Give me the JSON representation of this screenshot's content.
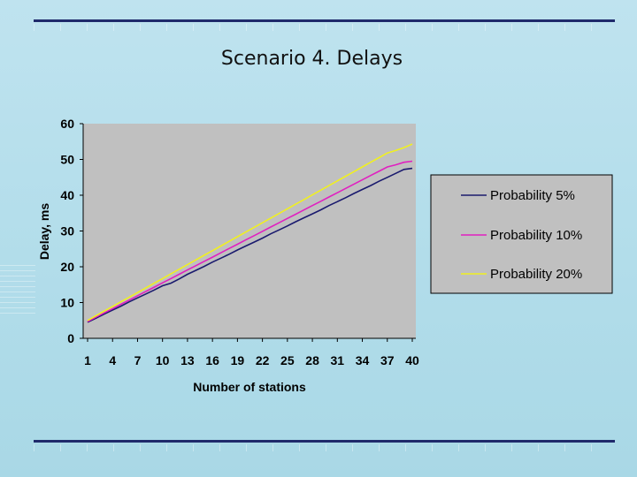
{
  "slide": {
    "title": "Scenario 4. Delays"
  },
  "chart_data": {
    "type": "line",
    "title": "",
    "xlabel": "Number of stations",
    "ylabel": "Delay, ms",
    "ylim": [
      0,
      60
    ],
    "yticks": [
      0,
      10,
      20,
      30,
      40,
      50,
      60
    ],
    "xticks": [
      "1",
      "4",
      "7",
      "10",
      "13",
      "16",
      "19",
      "22",
      "25",
      "28",
      "31",
      "34",
      "37",
      "40"
    ],
    "xlim": [
      1,
      40
    ],
    "grid": false,
    "legend": "right",
    "x": [
      1,
      2,
      3,
      4,
      5,
      6,
      7,
      8,
      9,
      10,
      11,
      12,
      13,
      14,
      15,
      16,
      17,
      18,
      19,
      20,
      21,
      22,
      23,
      24,
      25,
      26,
      27,
      28,
      29,
      30,
      31,
      32,
      33,
      34,
      35,
      36,
      37,
      38,
      39,
      40
    ],
    "series": [
      {
        "name": "Probability 5%",
        "color": "#1a1a6e",
        "values": [
          4.5,
          5.6,
          6.8,
          7.9,
          9.0,
          10.2,
          11.3,
          12.4,
          13.5,
          14.7,
          15.4,
          16.6,
          17.9,
          19.0,
          20.1,
          21.3,
          22.4,
          23.5,
          24.7,
          25.8,
          26.9,
          28.0,
          29.2,
          30.3,
          31.4,
          32.6,
          33.7,
          34.8,
          35.9,
          37.1,
          38.2,
          39.3,
          40.5,
          41.6,
          42.7,
          43.9,
          45.0,
          46.1,
          47.2,
          47.5
        ]
      },
      {
        "name": "Probability 10%",
        "color": "#e020c0",
        "values": [
          4.7,
          5.9,
          7.1,
          8.3,
          9.5,
          10.7,
          11.9,
          13.1,
          14.3,
          15.5,
          16.7,
          17.9,
          19.1,
          20.3,
          21.5,
          22.7,
          23.9,
          25.1,
          26.3,
          27.5,
          28.7,
          29.9,
          31.1,
          32.3,
          33.5,
          34.7,
          35.9,
          37.1,
          38.3,
          39.5,
          40.7,
          41.9,
          43.1,
          44.3,
          45.5,
          46.7,
          47.9,
          48.5,
          49.2,
          49.5
        ]
      },
      {
        "name": "Probability 20%",
        "color": "#f0f020",
        "values": [
          5.0,
          6.3,
          7.6,
          8.9,
          10.2,
          11.5,
          12.8,
          14.1,
          15.4,
          16.7,
          18.0,
          19.3,
          20.6,
          21.9,
          23.2,
          24.5,
          25.8,
          27.1,
          28.4,
          29.7,
          31.0,
          32.3,
          33.6,
          34.9,
          36.2,
          37.5,
          38.8,
          40.1,
          41.4,
          42.7,
          44.0,
          45.3,
          46.6,
          47.9,
          49.2,
          50.5,
          51.8,
          52.5,
          53.3,
          54.3
        ]
      }
    ]
  }
}
